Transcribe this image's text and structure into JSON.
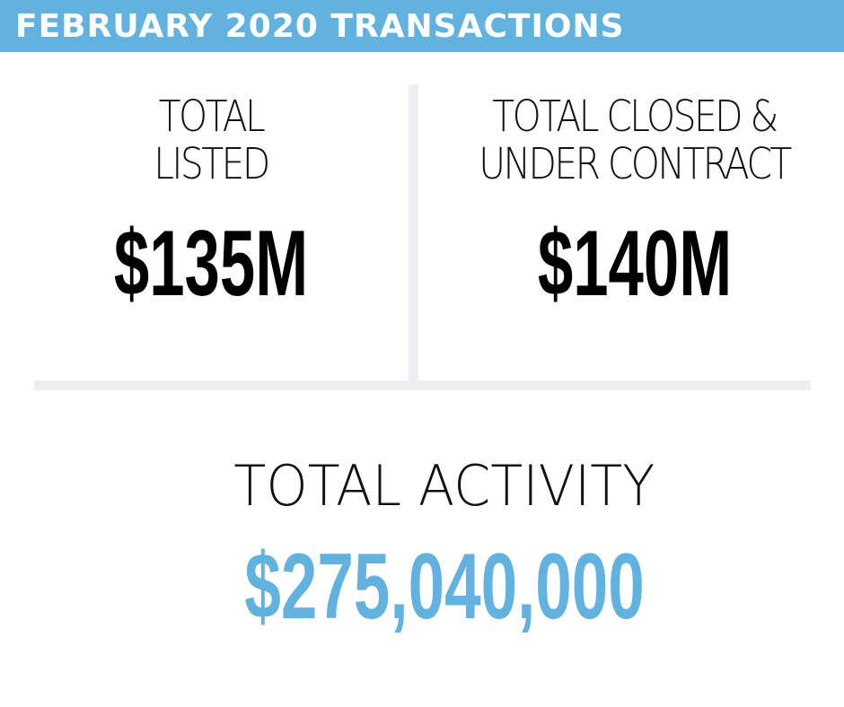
{
  "header": {
    "title": "FEBRUARY 2020 TRANSACTIONS"
  },
  "stats": [
    {
      "label_lines": [
        "TOTAL",
        "LISTED"
      ],
      "value": "$135M"
    },
    {
      "label_lines": [
        "TOTAL CLOSED &",
        "UNDER CONTRACT"
      ],
      "value": "$140M"
    }
  ],
  "total": {
    "label": "TOTAL ACTIVITY",
    "value": "$275,040,000"
  },
  "colors": {
    "accent": "#62b2df",
    "divider": "#eceef0",
    "text": "#000000",
    "background": "#ffffff"
  }
}
